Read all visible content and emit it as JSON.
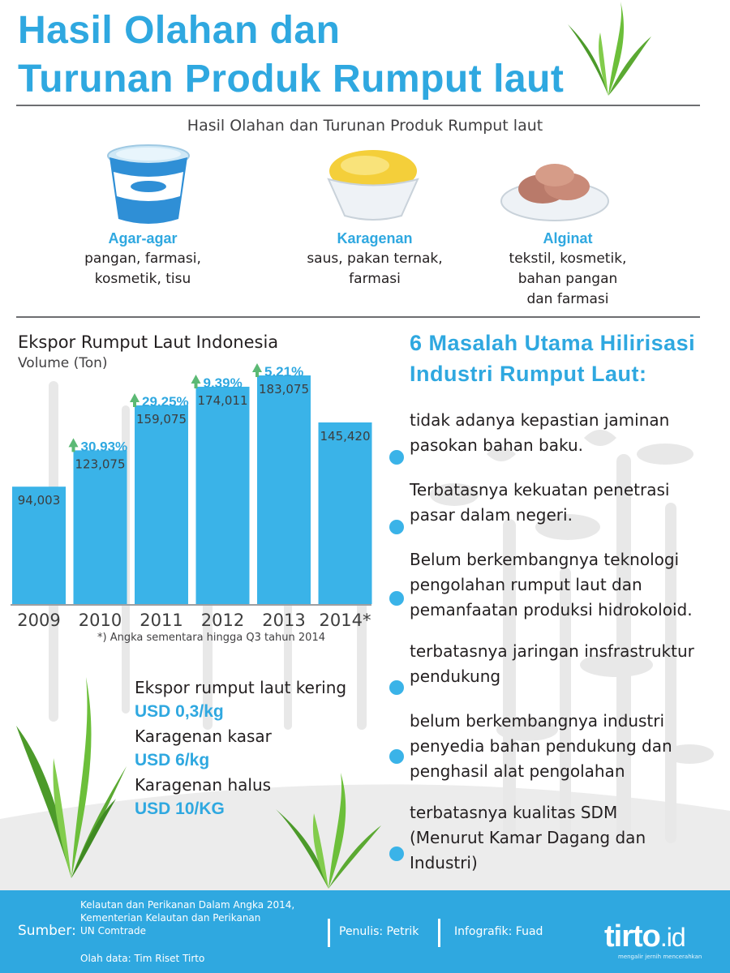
{
  "header": {
    "title_line1": "Hasil Olahan dan",
    "title_line2": "Turunan Produk Rumput laut",
    "subtitle": "Hasil Olahan dan Turunan Produk Rumput laut"
  },
  "products": [
    {
      "name": "Agar-agar",
      "uses": [
        "pangan, farmasi,",
        "kosmetik, tisu"
      ],
      "icon": "yogurt-cup-icon"
    },
    {
      "name": "Karagenan",
      "uses": [
        "saus, pakan ternak,",
        "farmasi"
      ],
      "icon": "pudding-bowl-icon"
    },
    {
      "name": "Alginat",
      "uses": [
        "tekstil, kosmetik,",
        "bahan pangan",
        "dan farmasi"
      ],
      "icon": "plate-food-icon"
    }
  ],
  "chart_data": {
    "type": "bar",
    "title": "Ekspor Rumput Laut Indonesia",
    "ylabel": "Volume (Ton)",
    "categories": [
      "2009",
      "2010",
      "2011",
      "2012",
      "2013",
      "2014*"
    ],
    "values": [
      94003,
      123075,
      159075,
      174011,
      183075,
      145420
    ],
    "value_labels": [
      "94,003",
      "123,075",
      "159,075",
      "174,011",
      "183,075",
      "145,420"
    ],
    "growth_labels": [
      "",
      "30.93%",
      "29.25%",
      "9.39%",
      "5.21%",
      ""
    ],
    "ylim": [
      0,
      183075
    ],
    "grid": false,
    "footnote": "*) Angka sementara hingga Q3 tahun 2014",
    "bar_color": "#3ab3e8",
    "arrow_color": "#5bb974",
    "growth_color": "#2fa8e0"
  },
  "prices": [
    {
      "label": "Ekspor rumput laut kering",
      "value": "USD 0,3/kg"
    },
    {
      "label": "Karagenan kasar",
      "value": "USD 6/kg"
    },
    {
      "label": "Karagenan halus",
      "value": "USD 10/KG"
    }
  ],
  "problems": {
    "title_line1": "6 Masalah Utama Hilirisasi",
    "title_line2": "Industri Rumput Laut:",
    "items": [
      [
        "tidak adanya kepastian jaminan",
        "pasokan bahan baku."
      ],
      [
        "Terbatasnya kekuatan penetrasi",
        "pasar dalam negeri."
      ],
      [
        "Belum berkembangnya teknologi",
        "pengolahan rumput laut dan",
        "pemanfaatan produksi hidrokoloid."
      ],
      [
        "terbatasnya jaringan insfrastruktur",
        "pendukung"
      ],
      [
        "belum berkembangnya industri",
        "penyedia bahan pendukung dan",
        "penghasil alat pengolahan"
      ],
      [
        "terbatasnya kualitas SDM",
        "(Menurut Kamar Dagang dan",
        "Industri)"
      ]
    ]
  },
  "footer": {
    "source_label": "Sumber:",
    "sources": [
      "Kelautan dan Perikanan Dalam Angka 2014,",
      "Kementerian Kelautan dan Perikanan",
      "UN Comtrade"
    ],
    "olah": "Olah data: Tim Riset Tirto",
    "penulis": "Penulis: Petrik",
    "infografik": "Infografik: Fuad",
    "logo": "tirto",
    "logo_suffix": ".id",
    "tagline": "mengalir jernih mencerahkan"
  },
  "colors": {
    "accent": "#2fa8e0",
    "bar": "#3ab3e8",
    "seaweed": "#5ba932",
    "background_silhouette": "#e8e8e8"
  }
}
